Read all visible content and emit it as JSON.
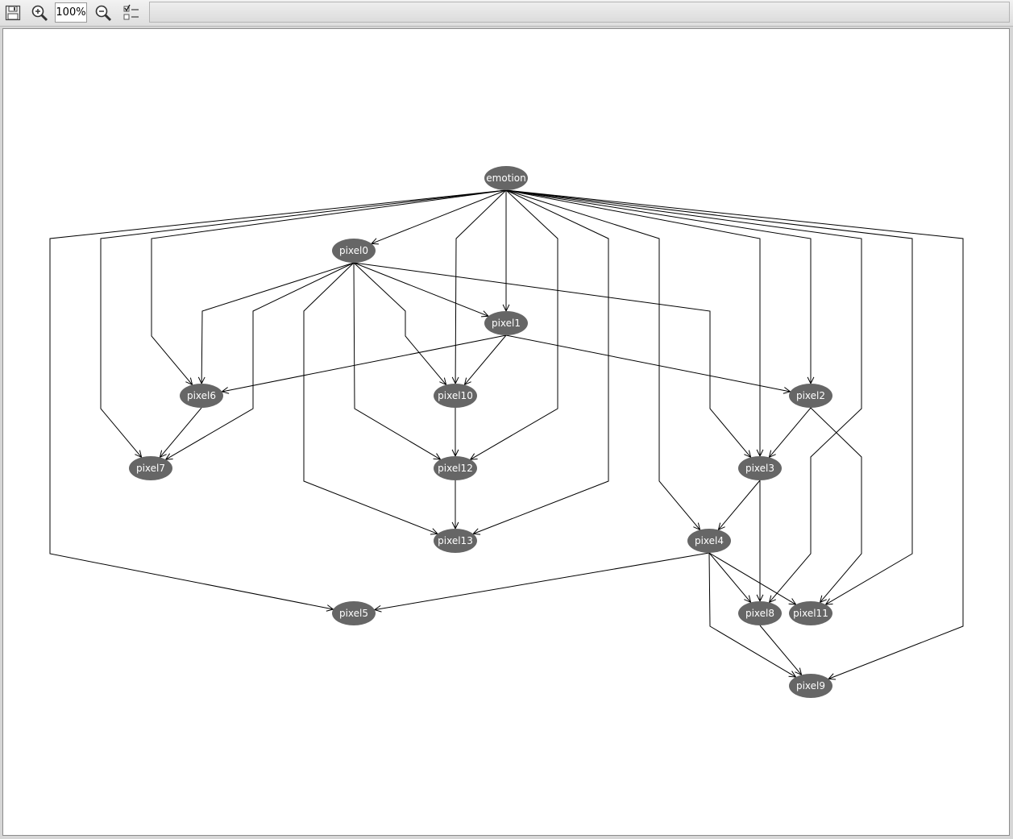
{
  "toolbar": {
    "save_icon": "floppy-disk-icon",
    "zoom_in_icon": "zoom-in-icon",
    "zoom_value": "100%",
    "zoom_out_icon": "zoom-out-icon",
    "layout_icon": "checklist-icon"
  },
  "graph": {
    "node_fill": "#666666",
    "edge_color": "#000000",
    "nodes": [
      {
        "id": "emotion",
        "label": "emotion"
      },
      {
        "id": "pixel0",
        "label": "pixel0"
      },
      {
        "id": "pixel1",
        "label": "pixel1"
      },
      {
        "id": "pixel2",
        "label": "pixel2"
      },
      {
        "id": "pixel3",
        "label": "pixel3"
      },
      {
        "id": "pixel4",
        "label": "pixel4"
      },
      {
        "id": "pixel5",
        "label": "pixel5"
      },
      {
        "id": "pixel6",
        "label": "pixel6"
      },
      {
        "id": "pixel7",
        "label": "pixel7"
      },
      {
        "id": "pixel8",
        "label": "pixel8"
      },
      {
        "id": "pixel9",
        "label": "pixel9"
      },
      {
        "id": "pixel10",
        "label": "pixel10"
      },
      {
        "id": "pixel11",
        "label": "pixel11"
      },
      {
        "id": "pixel12",
        "label": "pixel12"
      },
      {
        "id": "pixel13",
        "label": "pixel13"
      }
    ],
    "edges": [
      {
        "from": "emotion",
        "to": "pixel0"
      },
      {
        "from": "emotion",
        "to": "pixel1"
      },
      {
        "from": "emotion",
        "to": "pixel2"
      },
      {
        "from": "emotion",
        "to": "pixel3"
      },
      {
        "from": "emotion",
        "to": "pixel4"
      },
      {
        "from": "emotion",
        "to": "pixel5"
      },
      {
        "from": "emotion",
        "to": "pixel6"
      },
      {
        "from": "emotion",
        "to": "pixel7"
      },
      {
        "from": "emotion",
        "to": "pixel8"
      },
      {
        "from": "emotion",
        "to": "pixel9"
      },
      {
        "from": "emotion",
        "to": "pixel10"
      },
      {
        "from": "emotion",
        "to": "pixel11"
      },
      {
        "from": "emotion",
        "to": "pixel12"
      },
      {
        "from": "emotion",
        "to": "pixel13"
      },
      {
        "from": "pixel0",
        "to": "pixel1"
      },
      {
        "from": "pixel0",
        "to": "pixel3"
      },
      {
        "from": "pixel0",
        "to": "pixel6"
      },
      {
        "from": "pixel0",
        "to": "pixel7"
      },
      {
        "from": "pixel0",
        "to": "pixel10"
      },
      {
        "from": "pixel0",
        "to": "pixel12"
      },
      {
        "from": "pixel0",
        "to": "pixel13"
      },
      {
        "from": "pixel1",
        "to": "pixel2"
      },
      {
        "from": "pixel1",
        "to": "pixel6"
      },
      {
        "from": "pixel1",
        "to": "pixel10"
      },
      {
        "from": "pixel2",
        "to": "pixel3"
      },
      {
        "from": "pixel2",
        "to": "pixel11"
      },
      {
        "from": "pixel3",
        "to": "pixel4"
      },
      {
        "from": "pixel3",
        "to": "pixel8"
      },
      {
        "from": "pixel4",
        "to": "pixel5"
      },
      {
        "from": "pixel4",
        "to": "pixel8"
      },
      {
        "from": "pixel4",
        "to": "pixel9"
      },
      {
        "from": "pixel4",
        "to": "pixel11"
      },
      {
        "from": "pixel6",
        "to": "pixel7"
      },
      {
        "from": "pixel8",
        "to": "pixel9"
      },
      {
        "from": "pixel10",
        "to": "pixel12"
      },
      {
        "from": "pixel12",
        "to": "pixel13"
      }
    ]
  }
}
